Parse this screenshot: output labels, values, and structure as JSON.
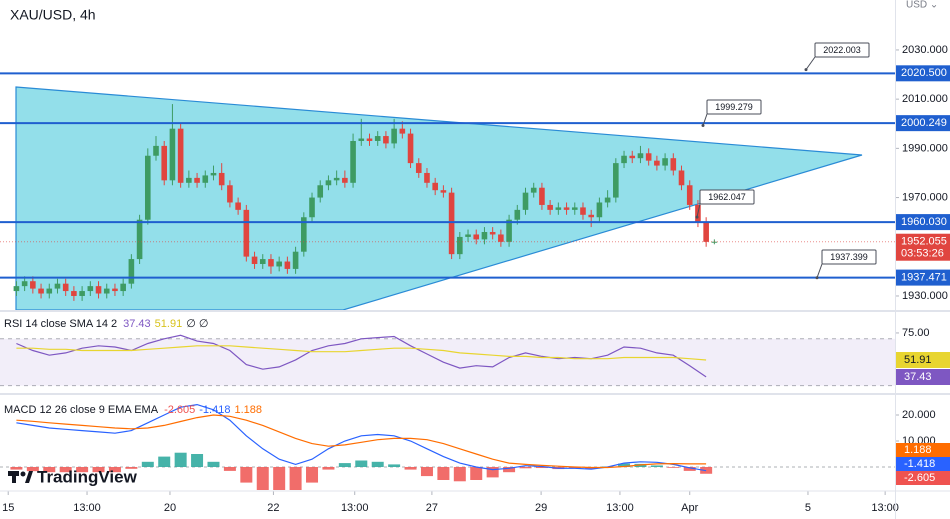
{
  "header": {
    "symbol": "XAU/USD, 4h",
    "currency": "USD ⌄"
  },
  "branding": "TradingView",
  "chart_data": [
    {
      "type": "candlestick",
      "x": [
        0,
        1,
        2,
        3,
        4,
        5,
        6,
        7,
        8,
        9,
        10,
        11,
        12,
        13,
        14,
        15,
        16,
        17,
        18,
        19,
        20,
        21,
        22,
        23,
        24,
        25,
        26,
        27,
        28,
        29,
        30,
        31,
        32,
        33,
        34,
        35,
        36,
        37,
        38,
        39,
        40,
        41,
        42,
        43,
        44,
        45,
        46,
        47,
        48,
        49,
        50,
        51,
        52,
        53,
        54,
        55,
        56,
        57,
        58,
        59,
        60,
        61,
        62,
        63,
        64,
        65,
        66,
        67,
        68,
        69,
        70,
        71,
        72,
        73,
        74,
        75,
        76,
        77,
        78,
        79,
        80,
        81,
        82,
        83,
        84,
        85
      ],
      "open": [
        1932,
        1934,
        1936,
        1933,
        1931,
        1933,
        1935,
        1932,
        1930,
        1932,
        1934,
        1931,
        1933,
        1932,
        1935,
        1945,
        1961,
        1987,
        1991,
        1977,
        1998,
        1976,
        1978,
        1976,
        1979,
        1980,
        1975,
        1968,
        1965,
        1946,
        1943,
        1945,
        1942,
        1944,
        1941,
        1948,
        1962,
        1970,
        1975,
        1977,
        1978,
        1976,
        1993,
        1994,
        1993,
        1995,
        1992,
        1998,
        1996,
        1984,
        1980,
        1976,
        1973,
        1972,
        1947,
        1954,
        1955,
        1953,
        1956,
        1955,
        1952,
        1961,
        1965,
        1972,
        1974,
        1967,
        1965,
        1966,
        1965,
        1966,
        1963,
        1962,
        1968,
        1970,
        1984,
        1987,
        1986,
        1988,
        1985,
        1983,
        1986,
        1981,
        1975,
        1967,
        1960,
        1952
      ],
      "high": [
        1936,
        1938,
        1938,
        1935,
        1935,
        1937,
        1937,
        1934,
        1934,
        1936,
        1936,
        1935,
        1935,
        1937,
        1947,
        1963,
        1990,
        1995,
        1993,
        2008,
        2000,
        1981,
        1980,
        1981,
        1983,
        1984,
        1977,
        1970,
        1967,
        1948,
        1947,
        1947,
        1946,
        1946,
        1950,
        1964,
        1972,
        1977,
        1979,
        1981,
        1981,
        1996,
        2002,
        1996,
        1997,
        1997,
        2002,
        2001,
        1998,
        1986,
        1982,
        1978,
        1975,
        1974,
        1956,
        1957,
        1957,
        1958,
        1958,
        1957,
        1963,
        1967,
        1974,
        1976,
        1976,
        1969,
        1968,
        1968,
        1968,
        1968,
        1965,
        1970,
        1973,
        1986,
        1989,
        1989,
        1991,
        1990,
        1987,
        1988,
        1988,
        1983,
        1977,
        1969,
        1962,
        1953
      ],
      "low": [
        1930,
        1932,
        1931,
        1929,
        1929,
        1931,
        1930,
        1928,
        1928,
        1930,
        1929,
        1929,
        1930,
        1930,
        1933,
        1943,
        1959,
        1985,
        1975,
        1975,
        1974,
        1974,
        1974,
        1974,
        1977,
        1973,
        1966,
        1963,
        1944,
        1941,
        1941,
        1939,
        1940,
        1939,
        1939,
        1946,
        1960,
        1968,
        1973,
        1975,
        1974,
        1974,
        1991,
        1991,
        1991,
        1990,
        1990,
        1994,
        1982,
        1978,
        1974,
        1971,
        1970,
        1945,
        1945,
        1952,
        1951,
        1951,
        1953,
        1950,
        1950,
        1959,
        1963,
        1970,
        1965,
        1963,
        1963,
        1963,
        1963,
        1961,
        1958,
        1960,
        1966,
        1968,
        1982,
        1984,
        1984,
        1983,
        1981,
        1981,
        1979,
        1973,
        1965,
        1958,
        1950,
        1951
      ],
      "close": [
        1934,
        1936,
        1933,
        1931,
        1933,
        1935,
        1932,
        1930,
        1932,
        1934,
        1931,
        1933,
        1932,
        1935,
        1945,
        1961,
        1987,
        1991,
        1977,
        1998,
        1976,
        1978,
        1976,
        1979,
        1980,
        1975,
        1968,
        1965,
        1946,
        1943,
        1945,
        1942,
        1944,
        1941,
        1948,
        1962,
        1970,
        1975,
        1977,
        1978,
        1976,
        1993,
        1994,
        1993,
        1995,
        1992,
        1998,
        1996,
        1984,
        1980,
        1976,
        1973,
        1972,
        1947,
        1954,
        1955,
        1953,
        1956,
        1955,
        1952,
        1961,
        1965,
        1972,
        1974,
        1967,
        1965,
        1966,
        1965,
        1966,
        1963,
        1962,
        1968,
        1970,
        1984,
        1987,
        1986,
        1988,
        1985,
        1983,
        1986,
        1981,
        1975,
        1967,
        1960,
        1952,
        1952.055
      ],
      "up_color": "#3e9b63",
      "down_color": "#e0453f",
      "xlim": [
        -2,
        107
      ],
      "ylim": [
        1924.3,
        2050.3
      ],
      "yticks": [
        {
          "value": 1930,
          "label": "1930.000"
        },
        {
          "value": 1970,
          "label": "1970.000"
        },
        {
          "value": 1990,
          "label": "1990.000"
        },
        {
          "value": 2010,
          "label": "2010.000"
        },
        {
          "value": 2030,
          "label": "2030.000"
        }
      ],
      "xticks": [
        {
          "value": -1,
          "label": "15"
        },
        {
          "value": 8.6,
          "label": "13:00"
        },
        {
          "value": 18.7,
          "label": "20"
        },
        {
          "value": 31.3,
          "label": "22"
        },
        {
          "value": 41.2,
          "label": "13:00"
        },
        {
          "value": 50.6,
          "label": "27"
        },
        {
          "value": 63.9,
          "label": "29"
        },
        {
          "value": 73.5,
          "label": "13:00"
        },
        {
          "value": 82,
          "label": "Apr"
        },
        {
          "value": 96.4,
          "label": "5"
        },
        {
          "value": 105.8,
          "label": "13:00"
        }
      ],
      "grid": false,
      "levels": [
        {
          "value": 2020.5,
          "label": "2020.500"
        },
        2000.249,
        {
          "value": 1960.03,
          "label": "1960.030"
        },
        1937.471
      ],
      "level_color": "#1f5fcf",
      "callouts": [
        2022.003,
        1999.279,
        1962.047,
        1937.399
      ],
      "last_price": 1952.055,
      "countdown": "03:53:26",
      "last_color": "#e0453f"
    },
    {
      "type": "line",
      "title": "RSI 14 close SMA 14 2",
      "status": "∅ ∅",
      "x": [
        0,
        2,
        4,
        6,
        8,
        10,
        12,
        14,
        16,
        18,
        20,
        22,
        24,
        26,
        28,
        30,
        32,
        34,
        36,
        38,
        40,
        42,
        44,
        46,
        48,
        50,
        52,
        54,
        56,
        58,
        60,
        62,
        64,
        66,
        68,
        70,
        72,
        74,
        76,
        78,
        80,
        82,
        84
      ],
      "series": [
        {
          "color": "#7e57c2",
          "values": [
            66,
            60,
            56,
            58,
            62,
            64,
            63,
            60,
            66,
            70,
            73,
            68,
            66,
            60,
            48,
            44,
            46,
            52,
            60,
            64,
            66,
            70,
            71,
            72,
            64,
            57,
            50,
            45,
            47,
            46,
            54,
            58,
            55,
            53,
            54,
            53,
            56,
            63,
            62,
            58,
            56,
            47,
            37.43
          ]
        },
        {
          "color": "#e8d530",
          "values": [
            62,
            62,
            61,
            61,
            60,
            60,
            60,
            60,
            61,
            62,
            63,
            64,
            64,
            64,
            63,
            62,
            61,
            60,
            59,
            59,
            59,
            60,
            61,
            62,
            62,
            61,
            60,
            58,
            57,
            56,
            55,
            55,
            54,
            54,
            53,
            53,
            53,
            54,
            54,
            54,
            54,
            53,
            51.91
          ]
        }
      ],
      "ylim": [
        23.7,
        92.9
      ],
      "yticks": [
        {
          "value": 75,
          "label": "75.00"
        }
      ],
      "bands": [
        70,
        30
      ],
      "band_color": "#7e57c2"
    },
    {
      "type": "macd",
      "title": "MACD 12 26 close 9 EMA EMA",
      "x": [
        0,
        2,
        4,
        6,
        8,
        10,
        12,
        14,
        16,
        18,
        20,
        22,
        24,
        26,
        28,
        30,
        32,
        34,
        36,
        38,
        40,
        42,
        44,
        46,
        48,
        50,
        52,
        54,
        56,
        58,
        60,
        62,
        64,
        66,
        68,
        70,
        72,
        74,
        76,
        78,
        80,
        82,
        84
      ],
      "histogram": {
        "up_color": "#26a69a",
        "down_color": "#ef5350",
        "values": [
          -1,
          -1.6,
          -2,
          -2,
          -2,
          -2,
          -2,
          -0.7,
          2,
          4,
          5.5,
          5,
          2,
          -1.5,
          -6,
          -9,
          -10.5,
          -10,
          -6,
          -1,
          1.5,
          2.5,
          2,
          1,
          -1,
          -3.5,
          -5,
          -5.5,
          -5,
          -4,
          -2,
          -0.5,
          -0.4,
          -0.8,
          -0.5,
          -0.6,
          0.2,
          1.3,
          1.2,
          0.6,
          -0.3,
          -1.5,
          -2.605
        ]
      },
      "series": [
        {
          "color": "#2962ff",
          "values": [
            17,
            16,
            15,
            14.5,
            14,
            13.5,
            13,
            14,
            17,
            20,
            23,
            24,
            22,
            18,
            12,
            7,
            3,
            1,
            3,
            7,
            10,
            12,
            12.5,
            12,
            10,
            7,
            4,
            1.5,
            0,
            -1,
            -0.5,
            0.5,
            0.2,
            -0.5,
            -0.5,
            -0.8,
            0,
            1.5,
            2,
            1.8,
            1,
            -0.3,
            -1.418
          ]
        },
        {
          "color": "#ff6d00",
          "values": [
            18,
            17.6,
            17,
            16.5,
            16,
            15.5,
            15,
            14.7,
            15,
            16,
            17.5,
            19,
            20,
            19.5,
            18,
            16,
            13.5,
            11,
            9,
            8,
            8.5,
            9.5,
            10.5,
            11,
            11,
            10.5,
            9,
            7,
            5,
            3,
            1.5,
            1,
            0.6,
            0.3,
            0,
            -0.2,
            -0.2,
            0.2,
            0.8,
            1.2,
            1.3,
            1.2,
            1.188
          ]
        }
      ],
      "ylim": [
        -8.85,
        27.7
      ],
      "yticks": [
        {
          "value": 20,
          "label": "20.000"
        },
        {
          "value": 10,
          "label": "10.000"
        }
      ]
    }
  ]
}
